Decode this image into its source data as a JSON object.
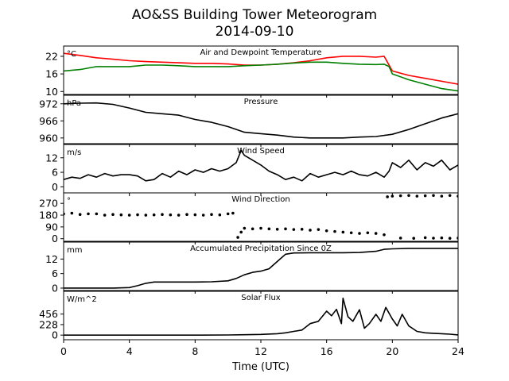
{
  "figure": {
    "title_line1": "AO&SS Building Tower Meteorogram",
    "title_line2": "2014-09-10",
    "xlabel": "Time (UTC)"
  },
  "colors": {
    "temperature": "#ff0000",
    "dewpoint": "#008000",
    "default": "#000000"
  },
  "chart_data": [
    {
      "type": "line",
      "title": "Air and Dewpoint Temperature",
      "unit": "°C",
      "xlim": [
        0,
        24
      ],
      "ylim": [
        9,
        25.5
      ],
      "xticks": [
        0,
        4,
        8,
        12,
        16,
        20,
        24
      ],
      "yticks": [
        10,
        16,
        22
      ],
      "series": [
        {
          "color": "#ff0000",
          "x": [
            0,
            1,
            2,
            3,
            4,
            5,
            6,
            7,
            8,
            9,
            10,
            11,
            12,
            13,
            14,
            15,
            16,
            17,
            18,
            19,
            19.5,
            19.7,
            20,
            21,
            22,
            23,
            24
          ],
          "y": [
            23,
            22.3,
            21.5,
            21,
            20.5,
            20.2,
            20,
            19.8,
            19.6,
            19.6,
            19.4,
            19,
            19,
            19.3,
            19.8,
            20.5,
            21.5,
            22,
            22,
            21.7,
            22,
            20,
            17,
            15.5,
            14.5,
            13.5,
            12.5
          ]
        },
        {
          "color": "#008000",
          "x": [
            0,
            1,
            2,
            3,
            4,
            5,
            6,
            7,
            8,
            9,
            10,
            11,
            12,
            13,
            14,
            15,
            16,
            17,
            18,
            19,
            19.5,
            19.8,
            20,
            21,
            22,
            23,
            24
          ],
          "y": [
            17,
            17.5,
            18.5,
            18.5,
            18.5,
            19,
            19,
            18.8,
            18.5,
            18.5,
            18.5,
            18.8,
            19,
            19.3,
            19.7,
            20,
            20,
            19.6,
            19.3,
            19.2,
            19.3,
            18.5,
            16,
            14,
            12.5,
            11,
            10.2
          ]
        }
      ]
    },
    {
      "type": "line",
      "title": "Pressure",
      "unit": "hPa",
      "xlim": [
        0,
        24
      ],
      "ylim": [
        958,
        975
      ],
      "xticks": [
        0,
        4,
        8,
        12,
        16,
        20,
        24
      ],
      "yticks": [
        960,
        966,
        972
      ],
      "series": [
        {
          "color": "#000000",
          "x": [
            0,
            1,
            2,
            3,
            4,
            5,
            6,
            7,
            8,
            9,
            10,
            11,
            12,
            13,
            14,
            15,
            16,
            17,
            18,
            19,
            20,
            21,
            22,
            23,
            24
          ],
          "y": [
            972,
            972.2,
            972.3,
            971.8,
            970.5,
            969,
            968.5,
            968,
            966.5,
            965.5,
            964,
            962,
            961.5,
            961,
            960.3,
            960,
            960,
            960,
            960.3,
            960.5,
            961.3,
            963,
            965,
            967,
            968.5
          ]
        }
      ]
    },
    {
      "type": "line",
      "title": "Wind Speed",
      "unit": "m/s",
      "xlim": [
        0,
        24
      ],
      "ylim": [
        -2.5,
        17.5
      ],
      "xticks": [
        0,
        4,
        8,
        12,
        16,
        20,
        24
      ],
      "yticks": [
        0,
        6,
        12
      ],
      "series": [
        {
          "color": "#000000",
          "x": [
            0,
            0.5,
            1,
            1.5,
            2,
            2.5,
            3,
            3.5,
            4,
            4.5,
            5,
            5.5,
            6,
            6.5,
            7,
            7.5,
            8,
            8.5,
            9,
            9.5,
            10,
            10.5,
            10.8,
            11,
            11.5,
            12,
            12.5,
            13,
            13.5,
            14,
            14.5,
            15,
            15.5,
            16,
            16.5,
            17,
            17.5,
            18,
            18.5,
            19,
            19.5,
            19.8,
            20,
            20.5,
            21,
            21.5,
            22,
            22.5,
            23,
            23.5,
            24
          ],
          "y": [
            3,
            4,
            3.5,
            5,
            4,
            5.5,
            4.5,
            5,
            5,
            4.5,
            2.5,
            3,
            5.5,
            4,
            6.5,
            5,
            7,
            6,
            7.5,
            6.5,
            7.5,
            10,
            15,
            13,
            11,
            9,
            6.5,
            5,
            3,
            4,
            2.5,
            5.5,
            4,
            5,
            6,
            5,
            6.5,
            5,
            4.5,
            6,
            4,
            6.5,
            10,
            8,
            11,
            7,
            10,
            8.5,
            11,
            7,
            9
          ]
        }
      ]
    },
    {
      "type": "scatter",
      "title": "Wind Direction",
      "unit": "°",
      "xlim": [
        0,
        24
      ],
      "ylim": [
        -20,
        350
      ],
      "xticks": [
        0,
        4,
        8,
        12,
        16,
        20,
        24
      ],
      "yticks": [
        0,
        90,
        180,
        270
      ],
      "series": [
        {
          "color": "#000000",
          "x": [
            0,
            0.5,
            1,
            1.5,
            2,
            2.5,
            3,
            3.5,
            4,
            4.5,
            5,
            5.5,
            6,
            6.5,
            7,
            7.5,
            8,
            8.5,
            9,
            9.5,
            10,
            10.3
          ],
          "y": [
            190,
            195,
            185,
            190,
            190,
            180,
            185,
            182,
            180,
            183,
            180,
            182,
            185,
            182,
            180,
            185,
            183,
            180,
            185,
            182,
            190,
            195
          ]
        },
        {
          "color": "#000000",
          "x": [
            10.6,
            10.8,
            11,
            11.5,
            12,
            12.5,
            13,
            13.5,
            14,
            14.5,
            15,
            15.5,
            16,
            16.5,
            17,
            17.5,
            18,
            18.5,
            19,
            19.5
          ],
          "y": [
            10,
            50,
            80,
            75,
            80,
            75,
            72,
            75,
            70,
            72,
            65,
            70,
            60,
            55,
            50,
            45,
            40,
            45,
            40,
            30
          ]
        },
        {
          "color": "#000000",
          "x": [
            19.7,
            20,
            20.5,
            21,
            21.5,
            22,
            22.5,
            23,
            23.5,
            24
          ],
          "y": [
            320,
            325,
            328,
            330,
            325,
            328,
            330,
            325,
            330,
            325
          ]
        },
        {
          "color": "#000000",
          "x": [
            20.5,
            21.3,
            22,
            22.5,
            23,
            23.5,
            24
          ],
          "y": [
            5,
            3,
            8,
            4,
            6,
            3,
            5
          ]
        }
      ]
    },
    {
      "type": "line",
      "title": "Accumulated Precipitation Since 0Z",
      "unit": "mm",
      "xlim": [
        0,
        24
      ],
      "ylim": [
        -1,
        19
      ],
      "xticks": [
        0,
        4,
        8,
        12,
        16,
        20,
        24
      ],
      "yticks": [
        0,
        6,
        12
      ],
      "series": [
        {
          "color": "#000000",
          "x": [
            0,
            3,
            4,
            4.5,
            5,
            5.5,
            6,
            7,
            8,
            9,
            10,
            10.5,
            11,
            11.5,
            12,
            12.5,
            13,
            13.5,
            14,
            15,
            16,
            17,
            18,
            19,
            19.5,
            20,
            21,
            22,
            23,
            24
          ],
          "y": [
            0,
            0,
            0.2,
            1,
            2,
            2.5,
            2.5,
            2.5,
            2.5,
            2.6,
            3,
            4,
            5.5,
            6.5,
            7,
            8,
            11,
            14,
            14.5,
            14.6,
            14.6,
            14.6,
            14.7,
            15.2,
            16,
            16.2,
            16.4,
            16.4,
            16.4,
            16.4
          ]
        }
      ]
    },
    {
      "type": "line",
      "title": "Solar Flux",
      "unit": "W/m^2",
      "xlim": [
        0,
        24
      ],
      "ylim": [
        -100,
        950
      ],
      "xticks": [
        0,
        4,
        8,
        12,
        16,
        20,
        24
      ],
      "yticks": [
        0,
        228,
        456
      ],
      "series": [
        {
          "color": "#000000",
          "x": [
            0,
            4,
            8,
            10,
            11,
            12,
            13,
            13.5,
            14,
            14.5,
            15,
            15.5,
            16,
            16.3,
            16.6,
            16.9,
            17,
            17.3,
            17.6,
            18,
            18.3,
            18.6,
            19,
            19.3,
            19.6,
            20,
            20.3,
            20.6,
            21,
            21.5,
            22,
            22.5,
            23,
            23.5,
            24
          ],
          "y": [
            0,
            0,
            0,
            3,
            8,
            15,
            30,
            50,
            80,
            110,
            250,
            300,
            520,
            420,
            560,
            250,
            800,
            400,
            300,
            550,
            150,
            250,
            450,
            300,
            600,
            350,
            200,
            450,
            200,
            80,
            50,
            40,
            30,
            20,
            5
          ]
        }
      ]
    }
  ]
}
